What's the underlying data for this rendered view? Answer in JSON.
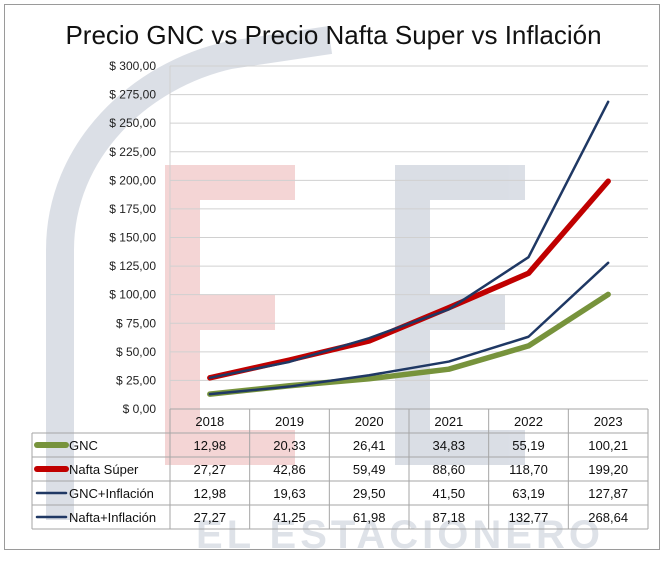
{
  "chart_data": {
    "type": "line",
    "title": "Precio GNC vs Precio Nafta Super vs Inflación",
    "categories": [
      "2018",
      "2019",
      "2020",
      "2021",
      "2022",
      "2023"
    ],
    "y_tick_labels": [
      "$ 0,00",
      "$ 25,00",
      "$ 50,00",
      "$ 75,00",
      "$ 100,00",
      "$ 125,00",
      "$ 150,00",
      "$ 175,00",
      "$ 200,00",
      "$ 225,00",
      "$ 250,00",
      "$ 275,00",
      "$ 300,00"
    ],
    "ylim": [
      0,
      300
    ],
    "y_step": 25,
    "grid": true,
    "legend": "data-table-below",
    "series": [
      {
        "name": "GNC",
        "color": "#77933c",
        "style": "thick",
        "values": [
          12.98,
          20.33,
          26.41,
          34.83,
          55.19,
          100.21
        ],
        "labels": [
          "12,98",
          "20,33",
          "26,41",
          "34,83",
          "55,19",
          "100,21"
        ]
      },
      {
        "name": "Nafta Súper",
        "color": "#c00000",
        "style": "thick",
        "values": [
          27.27,
          42.86,
          59.49,
          88.6,
          118.7,
          199.2
        ],
        "labels": [
          "27,27",
          "42,86",
          "59,49",
          "88,60",
          "118,70",
          "199,20"
        ]
      },
      {
        "name": "GNC+Inflación",
        "color": "#1f3864",
        "style": "thin",
        "values": [
          12.98,
          19.63,
          29.5,
          41.5,
          63.19,
          127.87
        ],
        "labels": [
          "12,98",
          "19,63",
          "29,50",
          "41,50",
          "63,19",
          "127,87"
        ]
      },
      {
        "name": "Nafta+Inflación",
        "color": "#1f3864",
        "style": "thin",
        "values": [
          27.27,
          41.25,
          61.98,
          87.18,
          132.77,
          268.64
        ],
        "labels": [
          "27,27",
          "41,25",
          "61,98",
          "87,18",
          "132,77",
          "268,64"
        ]
      }
    ]
  },
  "watermark": {
    "text": "EL ESTACIONERO"
  }
}
